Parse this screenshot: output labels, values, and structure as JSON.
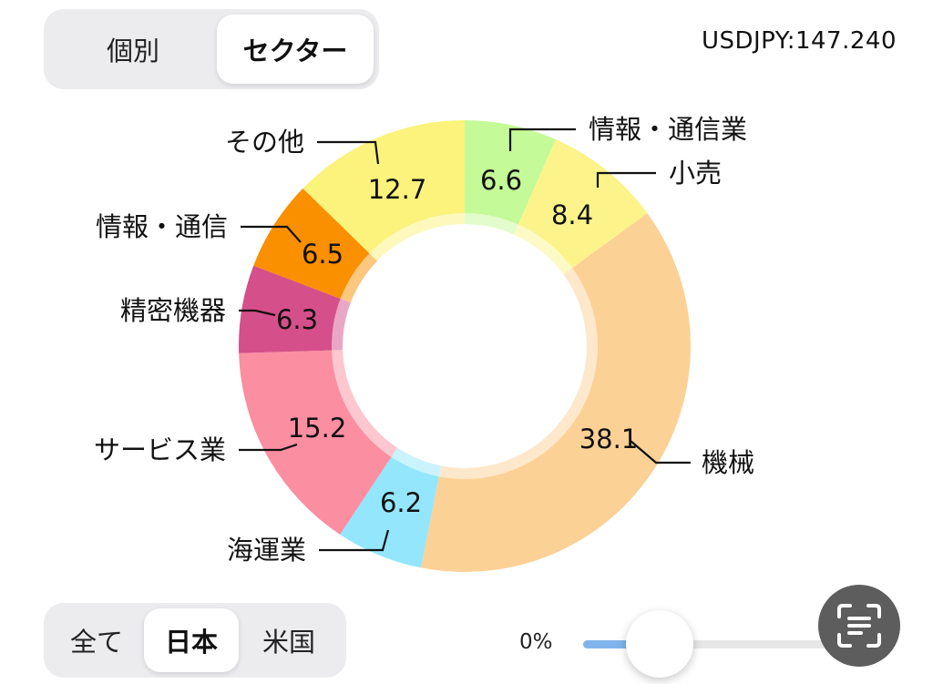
{
  "view_toggle": {
    "options": [
      "個別",
      "セクター"
    ],
    "selected": "セクター"
  },
  "fx_rate": "USDJPY:147.240",
  "region_toggle": {
    "options": [
      "全て",
      "日本",
      "米国"
    ],
    "selected": "日本"
  },
  "slider": {
    "min_label": "0%",
    "value": 0
  },
  "colors": {
    "accent": "#7fb5ec",
    "scan_button": "#5d5d5d"
  },
  "icons": {
    "scan": "text-scan-icon"
  },
  "chart_data": {
    "type": "pie",
    "subtype": "donut",
    "unit": "%",
    "series": [
      {
        "label": "情報・通信業",
        "value": 6.6,
        "color": "#c4fa97"
      },
      {
        "label": "小売",
        "value": 8.4,
        "color": "#fcf48a"
      },
      {
        "label": "機械",
        "value": 38.1,
        "color": "#fcd196"
      },
      {
        "label": "海運業",
        "value": 6.2,
        "color": "#94e6fc"
      },
      {
        "label": "サービス業",
        "value": 15.2,
        "color": "#fb8ea1"
      },
      {
        "label": "精密機器",
        "value": 6.3,
        "color": "#d54f8a"
      },
      {
        "label": "情報・通信",
        "value": 6.5,
        "color": "#fa8f00"
      },
      {
        "label": "その他",
        "value": 12.7,
        "color": "#fbf37b"
      }
    ]
  }
}
